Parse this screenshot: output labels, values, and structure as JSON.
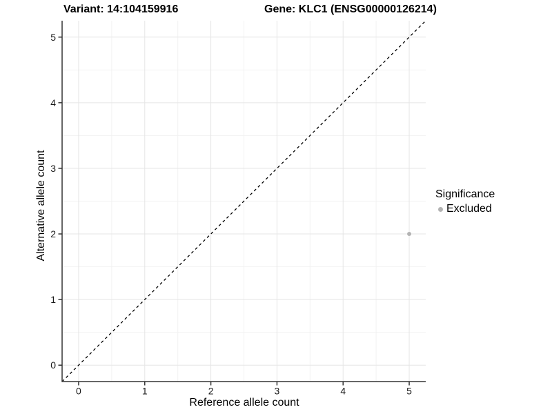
{
  "chart_data": {
    "type": "scatter",
    "titles": {
      "variant": "Variant: 14:104159916",
      "gene": "Gene: KLC1 (ENSG00000126214)"
    },
    "xlabel": "Reference allele count",
    "ylabel": "Alternative allele count",
    "xlim": [
      -0.25,
      5.25
    ],
    "ylim": [
      -0.25,
      5.25
    ],
    "x_ticks": [
      0,
      1,
      2,
      3,
      4,
      5
    ],
    "y_ticks": [
      0,
      1,
      2,
      3,
      4,
      5
    ],
    "grid": {
      "major": true,
      "minor": true
    },
    "legend_position": "right",
    "reference_line": {
      "kind": "identity",
      "slope": 1,
      "intercept": 0,
      "linetype": "dashed",
      "color": "#000000"
    },
    "series": [
      {
        "name": "Excluded",
        "color": "#b3b3b3",
        "points": [
          {
            "x": 5,
            "y": 2
          }
        ]
      }
    ],
    "legend": {
      "title": "Significance",
      "items": [
        {
          "label": "Excluded",
          "color": "#b3b3b3",
          "marker": "circle"
        }
      ]
    }
  },
  "colors": {
    "background": "#ffffff",
    "grid_major": "#e5e5e5",
    "grid_minor": "#f2f2f2",
    "axis_line": "#333333",
    "tick_text": "#1a1a1a",
    "title_text": "#000000"
  }
}
